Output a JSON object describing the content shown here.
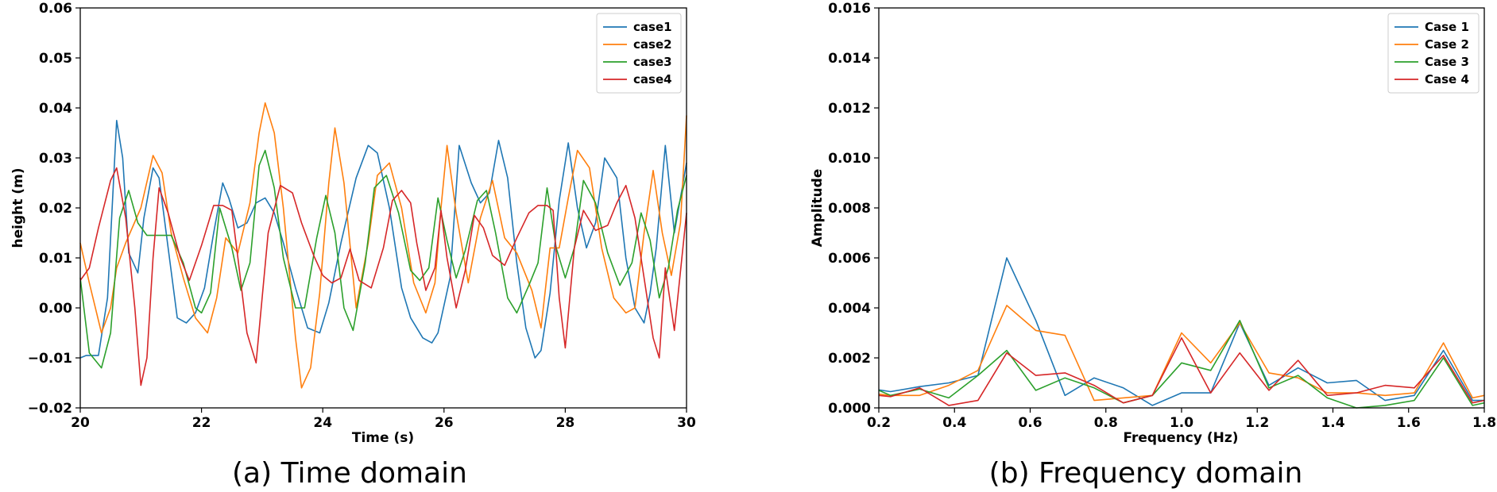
{
  "chart_data": [
    {
      "type": "line",
      "caption": "(a) Time domain",
      "xlabel": "Time (s)",
      "ylabel": "height (m)",
      "xlim": [
        20,
        30
      ],
      "ylim": [
        -0.02,
        0.06
      ],
      "xticks": [
        20,
        22,
        24,
        26,
        28,
        30
      ],
      "xtick_labels": [
        "20",
        "22",
        "24",
        "26",
        "28",
        "30"
      ],
      "yticks": [
        -0.02,
        -0.01,
        0.0,
        0.01,
        0.02,
        0.03,
        0.04,
        0.05,
        0.06
      ],
      "ytick_labels": [
        "−0.02",
        "−0.01",
        "0.00",
        "0.01",
        "0.02",
        "0.03",
        "0.04",
        "0.05",
        "0.06"
      ],
      "legend_position": "top-right",
      "series": [
        {
          "name": "case1",
          "color": "#1f77b4",
          "x": [
            20.0,
            20.1,
            20.3,
            20.45,
            20.6,
            20.7,
            20.8,
            20.95,
            21.05,
            21.2,
            21.3,
            21.45,
            21.6,
            21.75,
            21.9,
            22.05,
            22.2,
            22.35,
            22.45,
            22.6,
            22.75,
            22.9,
            23.05,
            23.2,
            23.35,
            23.55,
            23.75,
            23.95,
            24.1,
            24.3,
            24.55,
            24.75,
            24.9,
            25.1,
            25.3,
            25.45,
            25.65,
            25.8,
            25.9,
            26.1,
            26.25,
            26.45,
            26.6,
            26.75,
            26.9,
            27.05,
            27.2,
            27.35,
            27.5,
            27.6,
            27.75,
            27.9,
            28.05,
            28.2,
            28.35,
            28.5,
            28.65,
            28.85,
            29.0,
            29.15,
            29.3,
            29.4,
            29.5,
            29.65,
            29.8,
            30.0
          ],
          "y": [
            -0.01,
            -0.0095,
            -0.0095,
            0.002,
            0.0375,
            0.03,
            0.011,
            0.007,
            0.018,
            0.028,
            0.026,
            0.012,
            -0.002,
            -0.003,
            -0.001,
            0.004,
            0.015,
            0.025,
            0.022,
            0.016,
            0.017,
            0.021,
            0.022,
            0.019,
            0.013,
            0.004,
            -0.004,
            -0.005,
            0.001,
            0.013,
            0.026,
            0.0325,
            0.031,
            0.02,
            0.004,
            -0.002,
            -0.006,
            -0.007,
            -0.005,
            0.006,
            0.0325,
            0.025,
            0.021,
            0.023,
            0.0335,
            0.026,
            0.009,
            -0.004,
            -0.01,
            -0.0085,
            0.003,
            0.0215,
            0.033,
            0.02,
            0.012,
            0.017,
            0.03,
            0.026,
            0.01,
            0.0,
            -0.003,
            0.003,
            0.012,
            0.0325,
            0.015,
            0.029
          ]
        },
        {
          "name": "case2",
          "color": "#ff7f0e",
          "x": [
            20.0,
            20.15,
            20.35,
            20.5,
            20.6,
            20.75,
            21.0,
            21.2,
            21.35,
            21.5,
            21.7,
            21.9,
            22.1,
            22.25,
            22.4,
            22.6,
            22.8,
            22.95,
            23.05,
            23.2,
            23.35,
            23.55,
            23.65,
            23.8,
            23.95,
            24.1,
            24.2,
            24.35,
            24.55,
            24.75,
            24.9,
            25.1,
            25.3,
            25.5,
            25.7,
            25.85,
            25.95,
            26.05,
            26.2,
            26.4,
            26.6,
            26.8,
            27.0,
            27.2,
            27.45,
            27.6,
            27.75,
            27.9,
            28.05,
            28.2,
            28.4,
            28.6,
            28.8,
            29.0,
            29.15,
            29.3,
            29.45,
            29.6,
            29.75,
            29.9,
            30.0
          ],
          "y": [
            0.013,
            0.005,
            -0.005,
            0.0,
            0.008,
            0.013,
            0.02,
            0.0305,
            0.027,
            0.015,
            0.006,
            -0.002,
            -0.005,
            0.002,
            0.014,
            0.011,
            0.021,
            0.035,
            0.041,
            0.035,
            0.02,
            -0.006,
            -0.016,
            -0.012,
            0.003,
            0.025,
            0.036,
            0.025,
            0.0,
            0.013,
            0.0265,
            0.029,
            0.02,
            0.005,
            -0.001,
            0.005,
            0.02,
            0.0325,
            0.019,
            0.005,
            0.018,
            0.0255,
            0.014,
            0.011,
            0.0035,
            -0.004,
            0.012,
            0.012,
            0.022,
            0.0315,
            0.028,
            0.012,
            0.002,
            -0.001,
            0.0,
            0.015,
            0.0275,
            0.015,
            0.0065,
            0.017,
            0.0385
          ]
        },
        {
          "name": "case3",
          "color": "#2ca02c",
          "x": [
            20.0,
            20.15,
            20.35,
            20.5,
            20.65,
            20.8,
            20.95,
            21.1,
            21.3,
            21.5,
            21.7,
            21.9,
            22.0,
            22.15,
            22.3,
            22.5,
            22.65,
            22.8,
            22.95,
            23.05,
            23.2,
            23.35,
            23.55,
            23.7,
            23.9,
            24.05,
            24.2,
            24.35,
            24.5,
            24.7,
            24.85,
            25.05,
            25.25,
            25.45,
            25.6,
            25.75,
            25.9,
            26.05,
            26.2,
            26.35,
            26.55,
            26.7,
            26.85,
            27.05,
            27.2,
            27.4,
            27.55,
            27.7,
            27.85,
            28.0,
            28.15,
            28.3,
            28.5,
            28.7,
            28.9,
            29.1,
            29.25,
            29.4,
            29.55,
            29.7,
            29.85,
            30.0
          ],
          "y": [
            0.006,
            -0.009,
            -0.012,
            -0.005,
            0.018,
            0.0235,
            0.017,
            0.0145,
            0.0145,
            0.0145,
            0.009,
            0.0,
            -0.001,
            0.003,
            0.02,
            0.012,
            0.0035,
            0.009,
            0.0285,
            0.0315,
            0.024,
            0.01,
            0.0,
            0.0,
            0.014,
            0.0225,
            0.015,
            0.0,
            -0.0045,
            0.009,
            0.024,
            0.0265,
            0.019,
            0.0075,
            0.0055,
            0.008,
            0.022,
            0.0135,
            0.006,
            0.0115,
            0.0215,
            0.0235,
            0.015,
            0.002,
            -0.001,
            0.0045,
            0.009,
            0.024,
            0.012,
            0.006,
            0.012,
            0.0255,
            0.021,
            0.011,
            0.0045,
            0.009,
            0.019,
            0.0135,
            0.002,
            0.008,
            0.0195,
            0.0265
          ]
        },
        {
          "name": "case4",
          "color": "#d62728",
          "x": [
            20.0,
            20.15,
            20.3,
            20.5,
            20.6,
            20.75,
            20.9,
            21.0,
            21.1,
            21.2,
            21.3,
            21.45,
            21.65,
            21.8,
            22.0,
            22.2,
            22.35,
            22.5,
            22.6,
            22.75,
            22.9,
            23.1,
            23.3,
            23.5,
            23.65,
            23.85,
            24.0,
            24.15,
            24.3,
            24.45,
            24.6,
            24.8,
            25.0,
            25.15,
            25.3,
            25.45,
            25.55,
            25.7,
            25.85,
            25.95,
            26.05,
            26.2,
            26.35,
            26.5,
            26.65,
            26.8,
            27.0,
            27.2,
            27.4,
            27.55,
            27.7,
            27.8,
            27.9,
            28.0,
            28.15,
            28.3,
            28.5,
            28.7,
            28.85,
            29.0,
            29.15,
            29.3,
            29.45,
            29.55,
            29.65,
            29.8,
            30.0
          ],
          "y": [
            0.0055,
            0.008,
            0.016,
            0.0255,
            0.028,
            0.018,
            0.0,
            -0.0155,
            -0.01,
            0.01,
            0.024,
            0.019,
            0.01,
            0.0055,
            0.0125,
            0.0205,
            0.0205,
            0.0195,
            0.01,
            -0.005,
            -0.011,
            0.015,
            0.0245,
            0.023,
            0.017,
            0.0105,
            0.0065,
            0.005,
            0.006,
            0.0118,
            0.0055,
            0.004,
            0.012,
            0.0215,
            0.0235,
            0.021,
            0.013,
            0.0035,
            0.008,
            0.0195,
            0.01,
            0.0,
            0.0075,
            0.0185,
            0.016,
            0.0105,
            0.0085,
            0.014,
            0.019,
            0.0205,
            0.0205,
            0.0195,
            0.002,
            -0.008,
            0.012,
            0.0195,
            0.0155,
            0.0165,
            0.021,
            0.0245,
            0.018,
            0.006,
            -0.006,
            -0.01,
            0.008,
            -0.0045,
            0.019
          ]
        }
      ]
    },
    {
      "type": "line",
      "caption": "(b) Frequency domain",
      "xlabel": "Frequency (Hz)",
      "ylabel": "Amplitude",
      "xlim": [
        0.2,
        1.8
      ],
      "ylim": [
        0.0,
        0.016
      ],
      "xticks": [
        0.2,
        0.4,
        0.6,
        0.8,
        1.0,
        1.2,
        1.4,
        1.6,
        1.8
      ],
      "xtick_labels": [
        "0.2",
        "0.4",
        "0.6",
        "0.8",
        "1.0",
        "1.2",
        "1.4",
        "1.6",
        "1.8"
      ],
      "yticks": [
        0.0,
        0.002,
        0.004,
        0.006,
        0.008,
        0.01,
        0.012,
        0.014,
        0.016
      ],
      "ytick_labels": [
        "0.000",
        "0.002",
        "0.004",
        "0.006",
        "0.008",
        "0.010",
        "0.012",
        "0.014",
        "0.016"
      ],
      "legend_position": "top-right",
      "series": [
        {
          "name": "Case 1",
          "color": "#1f77b4",
          "x": [
            0.2,
            0.231,
            0.308,
            0.385,
            0.462,
            0.538,
            0.615,
            0.692,
            0.769,
            0.846,
            0.923,
            1.0,
            1.077,
            1.154,
            1.231,
            1.308,
            1.385,
            1.462,
            1.538,
            1.615,
            1.692,
            1.769,
            1.8
          ],
          "y": [
            0.00072,
            0.00065,
            0.00085,
            0.001,
            0.0013,
            0.006,
            0.0035,
            0.0005,
            0.0012,
            0.0008,
            0.0001,
            0.0006,
            0.0006,
            0.0034,
            0.0009,
            0.0016,
            0.001,
            0.0011,
            0.0003,
            0.0005,
            0.0023,
            0.0003,
            0.0003
          ]
        },
        {
          "name": "Case 2",
          "color": "#ff7f0e",
          "x": [
            0.2,
            0.231,
            0.308,
            0.385,
            0.462,
            0.538,
            0.615,
            0.692,
            0.769,
            0.846,
            0.923,
            1.0,
            1.077,
            1.154,
            1.231,
            1.308,
            1.385,
            1.462,
            1.538,
            1.615,
            1.692,
            1.769,
            1.8
          ],
          "y": [
            0.00055,
            0.0005,
            0.0005,
            0.0009,
            0.0015,
            0.0041,
            0.0031,
            0.0029,
            0.0003,
            0.0004,
            0.0005,
            0.003,
            0.0018,
            0.0034,
            0.0014,
            0.0012,
            0.0006,
            0.0006,
            0.0005,
            0.0006,
            0.0026,
            0.0004,
            0.0005
          ]
        },
        {
          "name": "Case 3",
          "color": "#2ca02c",
          "x": [
            0.2,
            0.231,
            0.308,
            0.385,
            0.462,
            0.538,
            0.615,
            0.692,
            0.769,
            0.846,
            0.923,
            1.0,
            1.077,
            1.154,
            1.231,
            1.308,
            1.385,
            1.462,
            1.538,
            1.615,
            1.692,
            1.769,
            1.8
          ],
          "y": [
            0.0007,
            0.0005,
            0.00075,
            0.0004,
            0.0013,
            0.0023,
            0.0007,
            0.0012,
            0.0008,
            0.0002,
            0.0005,
            0.0018,
            0.0015,
            0.0035,
            0.0008,
            0.0013,
            0.0004,
            0.0,
            0.0001,
            0.0003,
            0.002,
            0.0001,
            0.0002
          ]
        },
        {
          "name": "Case 4",
          "color": "#d62728",
          "x": [
            0.2,
            0.231,
            0.308,
            0.385,
            0.462,
            0.538,
            0.615,
            0.692,
            0.769,
            0.846,
            0.923,
            1.0,
            1.077,
            1.154,
            1.231,
            1.308,
            1.385,
            1.462,
            1.538,
            1.615,
            1.692,
            1.769,
            1.8
          ],
          "y": [
            0.0005,
            0.00045,
            0.0008,
            0.0001,
            0.0003,
            0.0022,
            0.0013,
            0.0014,
            0.0009,
            0.0002,
            0.0005,
            0.0028,
            0.0006,
            0.0022,
            0.0007,
            0.0019,
            0.0005,
            0.0006,
            0.0009,
            0.0008,
            0.0021,
            0.0002,
            0.0003
          ]
        }
      ]
    }
  ]
}
